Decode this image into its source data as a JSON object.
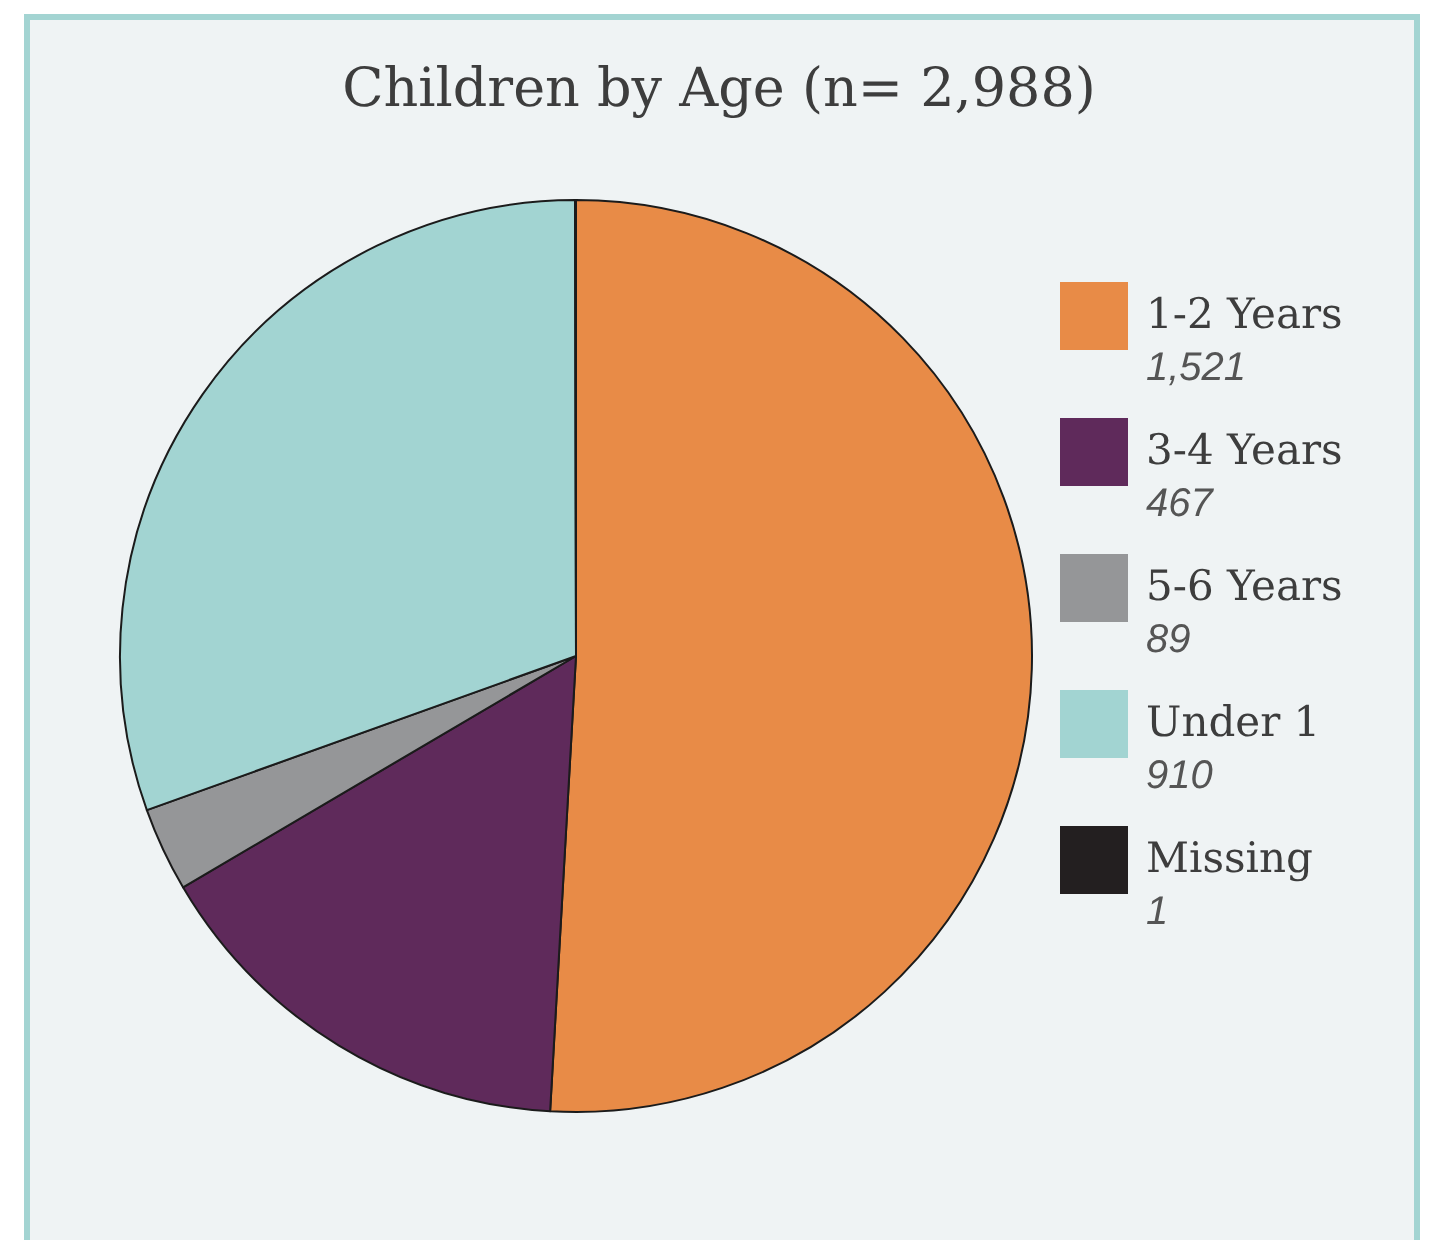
{
  "chart_data": {
    "type": "pie",
    "title": "Children by Age (n= 2,988)",
    "categories": [
      "1-2 Years",
      "3-4 Years",
      "5-6 Years",
      "Under 1",
      "Missing"
    ],
    "values": [
      1521,
      467,
      89,
      910,
      1
    ],
    "value_labels": [
      "1,521",
      "467",
      "89",
      "910",
      "1"
    ],
    "colors": [
      "#e88b47",
      "#5f2a5b",
      "#959698",
      "#a2d4d2",
      "#231f20"
    ],
    "legend": "right"
  }
}
